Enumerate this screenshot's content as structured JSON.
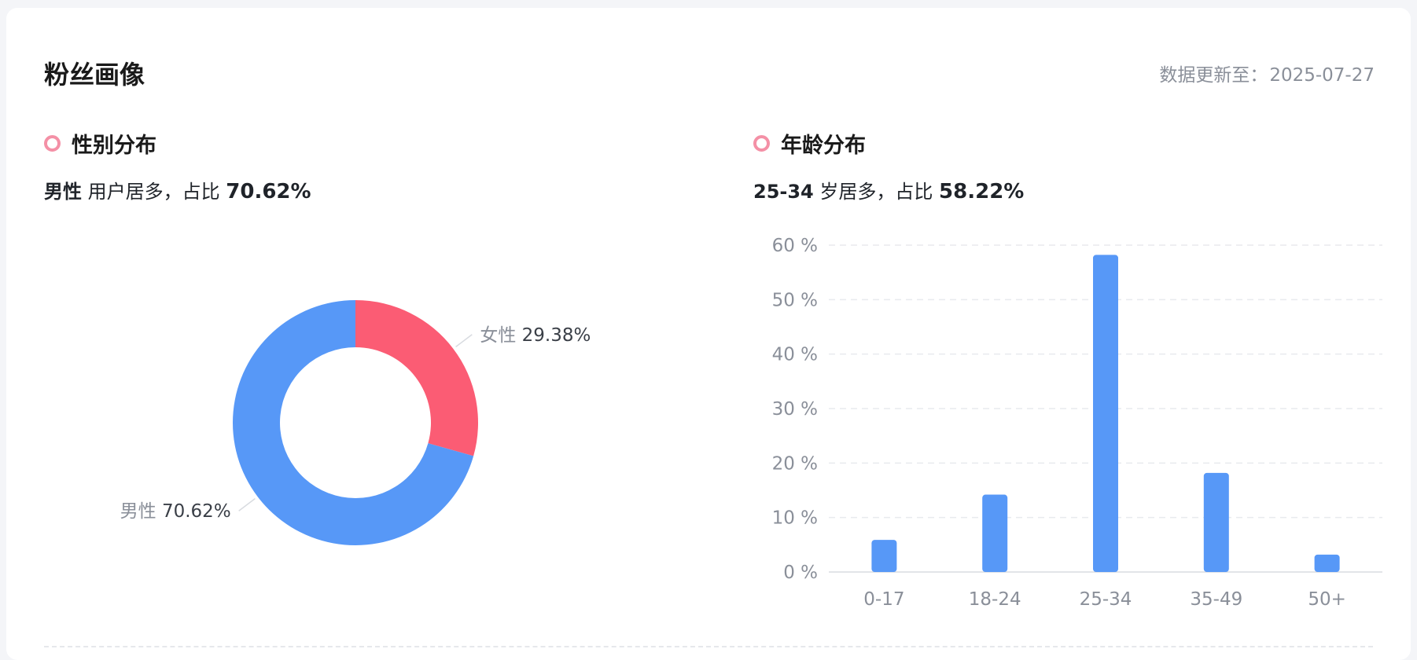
{
  "header": {
    "title": "粉丝画像",
    "update_label": "数据更新至：",
    "update_date": "2025-07-27"
  },
  "gender": {
    "section_title": "性别分布",
    "summary_lead": "男性",
    "summary_mid": "用户居多，占比",
    "summary_pct": "70.62%"
  },
  "age": {
    "section_title": "年龄分布",
    "summary_lead": "25-34",
    "summary_mid": "岁居多，占比",
    "summary_pct": "58.22%"
  },
  "colors": {
    "male": "#5798f7",
    "female": "#fb5c74",
    "bar": "#5798f7",
    "accent_ring": "#f490a6"
  },
  "chart_data": [
    {
      "type": "pie",
      "style": "donut",
      "labels": [
        "女性",
        "男性"
      ],
      "values": [
        29.38,
        70.62
      ],
      "label_text": [
        "29.38%",
        "70.62%"
      ],
      "colors": [
        "#fb5c74",
        "#5798f7"
      ]
    },
    {
      "type": "bar",
      "categories": [
        "0-17",
        "18-24",
        "25-34",
        "35-49",
        "50+"
      ],
      "values": [
        5.9,
        14.2,
        58.22,
        18.2,
        3.2
      ],
      "ylim": [
        0,
        60
      ],
      "yticks": [
        0,
        10,
        20,
        30,
        40,
        50,
        60
      ],
      "ytick_suffix": " %",
      "grid": true
    }
  ]
}
